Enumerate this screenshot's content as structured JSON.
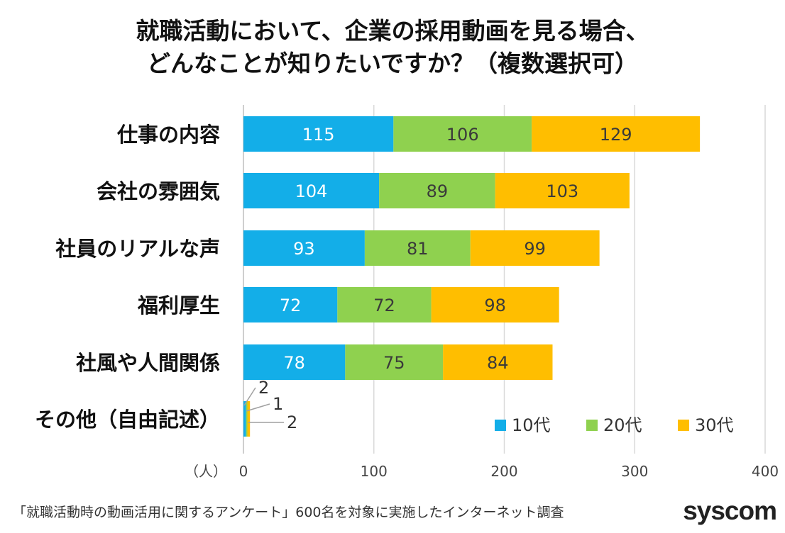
{
  "title_line1": "就職活動において、企業の採用動画を見る場合、",
  "title_line2": "どんなことが知りたいですか？（複数選択可）",
  "footer_note": "「就職活動時の動画活用に関するアンケート」600名を対象に実施したインターネット調査",
  "logo": "syscom",
  "colors": {
    "10代": "#13aee8",
    "20代": "#8fd14f",
    "30代": "#ffbe00",
    "grid": "#d9d9d9"
  },
  "chart_data": {
    "type": "bar",
    "orientation": "horizontal",
    "stacked": true,
    "title": "就職活動において、企業の採用動画を見る場合、どんなことが知りたいですか？（複数選択可）",
    "categories": [
      "仕事の内容",
      "会社の雰囲気",
      "社員のリアルな声",
      "福利厚生",
      "社風や人間関係",
      "その他（自由記述）"
    ],
    "series": [
      {
        "name": "10代",
        "values": [
          115,
          104,
          93,
          72,
          78,
          2
        ]
      },
      {
        "name": "20代",
        "values": [
          106,
          89,
          81,
          72,
          75,
          1
        ]
      },
      {
        "name": "30代",
        "values": [
          129,
          103,
          99,
          98,
          84,
          2
        ]
      }
    ],
    "xlabel": "（人）",
    "ylabel": "",
    "xlim": [
      0,
      400
    ],
    "xticks": [
      "0",
      "100",
      "200",
      "300",
      "400"
    ],
    "grid": true,
    "legend_position": "bottom-right"
  }
}
